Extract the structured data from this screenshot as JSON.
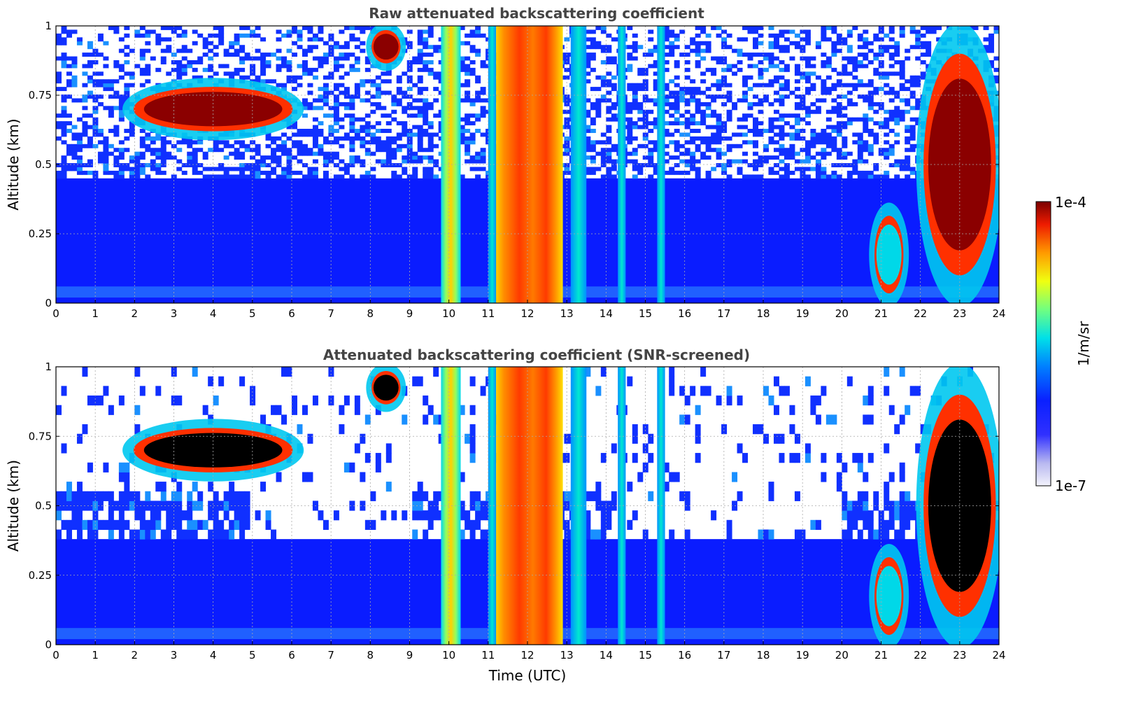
{
  "chart_data": [
    {
      "type": "heatmap",
      "title": "Raw attenuated backscattering coefficient",
      "xlabel": "",
      "ylabel": "Altitude (km)",
      "xlim": [
        0,
        24
      ],
      "ylim": [
        0,
        1
      ],
      "x_ticks": [
        "0",
        "1",
        "2",
        "3",
        "4",
        "5",
        "6",
        "7",
        "8",
        "9",
        "10",
        "11",
        "12",
        "13",
        "14",
        "15",
        "16",
        "17",
        "18",
        "19",
        "20",
        "21",
        "22",
        "23",
        "24"
      ],
      "y_ticks": [
        "0",
        "0.25",
        "0.5",
        "0.75",
        "1"
      ],
      "grid": true,
      "features": [
        {
          "x": [
            1.8,
            6.2
          ],
          "y": [
            0.6,
            0.8
          ],
          "level": "high"
        },
        {
          "x": [
            8.0,
            8.8
          ],
          "y": [
            0.85,
            1.0
          ],
          "level": "high"
        },
        {
          "x": [
            9.8,
            10.3
          ],
          "y": [
            0.0,
            1.0
          ],
          "level": "medium"
        },
        {
          "x": [
            11.2,
            12.9
          ],
          "y": [
            0.0,
            1.0
          ],
          "level": "high"
        },
        {
          "x": [
            13.1,
            13.5
          ],
          "y": [
            0.0,
            1.0
          ],
          "level": "medium"
        },
        {
          "x": [
            20.8,
            21.6
          ],
          "y": [
            0.0,
            0.35
          ],
          "level": "medium"
        },
        {
          "x": [
            22.0,
            24.0
          ],
          "y": [
            0.0,
            1.0
          ],
          "level": "high"
        }
      ]
    },
    {
      "type": "heatmap",
      "title": "Attenuated backscattering coefficient (SNR-screened)",
      "xlabel": "Time (UTC)",
      "ylabel": "Altitude (km)",
      "xlim": [
        0,
        24
      ],
      "ylim": [
        0,
        1
      ],
      "x_ticks": [
        "0",
        "1",
        "2",
        "3",
        "4",
        "5",
        "6",
        "7",
        "8",
        "9",
        "10",
        "11",
        "12",
        "13",
        "14",
        "15",
        "16",
        "17",
        "18",
        "19",
        "20",
        "21",
        "22",
        "23",
        "24"
      ],
      "y_ticks": [
        "0",
        "0.25",
        "0.5",
        "0.75",
        "1"
      ],
      "grid": true,
      "features": [
        {
          "x": [
            1.8,
            6.2
          ],
          "y": [
            0.6,
            0.8
          ],
          "level": "saturated"
        },
        {
          "x": [
            8.0,
            8.8
          ],
          "y": [
            0.85,
            1.0
          ],
          "level": "saturated"
        },
        {
          "x": [
            9.8,
            10.3
          ],
          "y": [
            0.0,
            1.0
          ],
          "level": "medium"
        },
        {
          "x": [
            11.2,
            12.9
          ],
          "y": [
            0.0,
            1.0
          ],
          "level": "high"
        },
        {
          "x": [
            13.1,
            13.5
          ],
          "y": [
            0.0,
            1.0
          ],
          "level": "medium"
        },
        {
          "x": [
            20.8,
            21.6
          ],
          "y": [
            0.0,
            0.35
          ],
          "level": "medium"
        },
        {
          "x": [
            22.0,
            24.0
          ],
          "y": [
            0.0,
            1.0
          ],
          "level": "saturated"
        }
      ]
    }
  ],
  "colorbar": {
    "label": "1/m/sr",
    "max_label": "1e-4",
    "min_label": "1e-7",
    "scale": "log",
    "colormap": "jet"
  }
}
